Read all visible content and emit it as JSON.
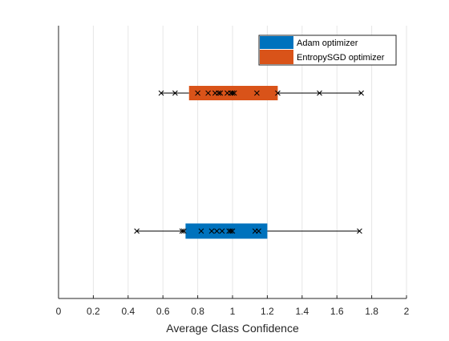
{
  "chart_data": {
    "type": "boxplot",
    "orientation": "horizontal",
    "title": "",
    "xlabel": "Average Class Confidence",
    "ylabel": "",
    "xlim": [
      0,
      2
    ],
    "xticks": [
      0,
      0.2,
      0.4,
      0.6,
      0.8,
      1,
      1.2,
      1.4,
      1.6,
      1.8,
      2
    ],
    "xtick_labels": [
      "0",
      "0.2",
      "0.4",
      "0.6",
      "0.8",
      "1",
      "1.2",
      "1.4",
      "1.6",
      "1.8",
      "2"
    ],
    "grid": "vertical",
    "legend": "top-right",
    "series": [
      {
        "name": "Adam optimizer",
        "color": "#0072BD",
        "whisker_low": 0.45,
        "box_low": 0.73,
        "box_high": 1.2,
        "whisker_high": 1.73,
        "points": [
          0.45,
          0.71,
          0.72,
          0.82,
          0.88,
          0.91,
          0.94,
          0.98,
          0.99,
          1.0,
          1.13,
          1.15,
          1.73
        ]
      },
      {
        "name": "EntropySGD optimizer",
        "color": "#D95319",
        "whisker_low": 0.59,
        "box_low": 0.75,
        "box_high": 1.26,
        "whisker_high": 1.74,
        "points": [
          0.59,
          0.67,
          0.8,
          0.86,
          0.9,
          0.92,
          0.93,
          0.97,
          0.99,
          1.0,
          1.01,
          1.14,
          1.26,
          1.5,
          1.74
        ]
      }
    ]
  }
}
